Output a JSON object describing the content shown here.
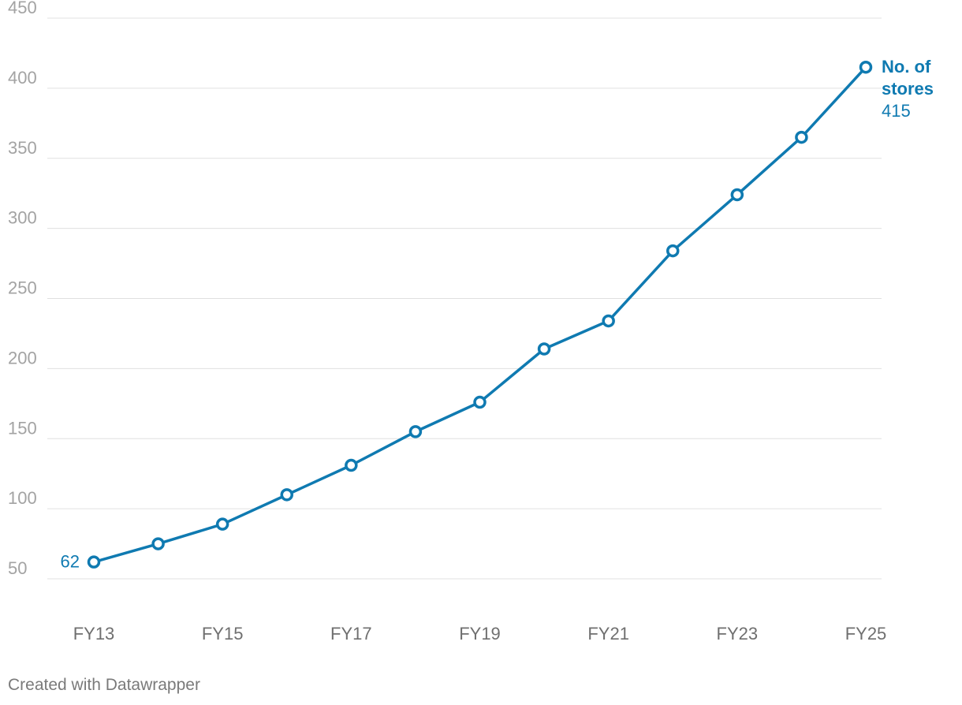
{
  "chart_data": {
    "type": "line",
    "x": [
      "FY13",
      "FY14",
      "FY15",
      "FY16",
      "FY17",
      "FY18",
      "FY19",
      "FY20",
      "FY21",
      "FY22",
      "FY23",
      "FY24",
      "FY25"
    ],
    "x_tick_labels": [
      "FY13",
      "FY15",
      "FY17",
      "FY19",
      "FY21",
      "FY23",
      "FY25"
    ],
    "series": [
      {
        "name_lines": [
          "No. of",
          "stores"
        ],
        "values": [
          62,
          75,
          89,
          110,
          131,
          155,
          176,
          214,
          234,
          284,
          324,
          365,
          415
        ],
        "color": "#0f7ab1"
      }
    ],
    "y_ticks": [
      50,
      100,
      150,
      200,
      250,
      300,
      350,
      400,
      450
    ],
    "ylim": [
      50,
      450
    ],
    "grid": true,
    "start_label": "62",
    "end_label": "415",
    "xlabel": "",
    "ylabel": "",
    "title": ""
  },
  "footer": {
    "credit": "Created with Datawrapper"
  }
}
